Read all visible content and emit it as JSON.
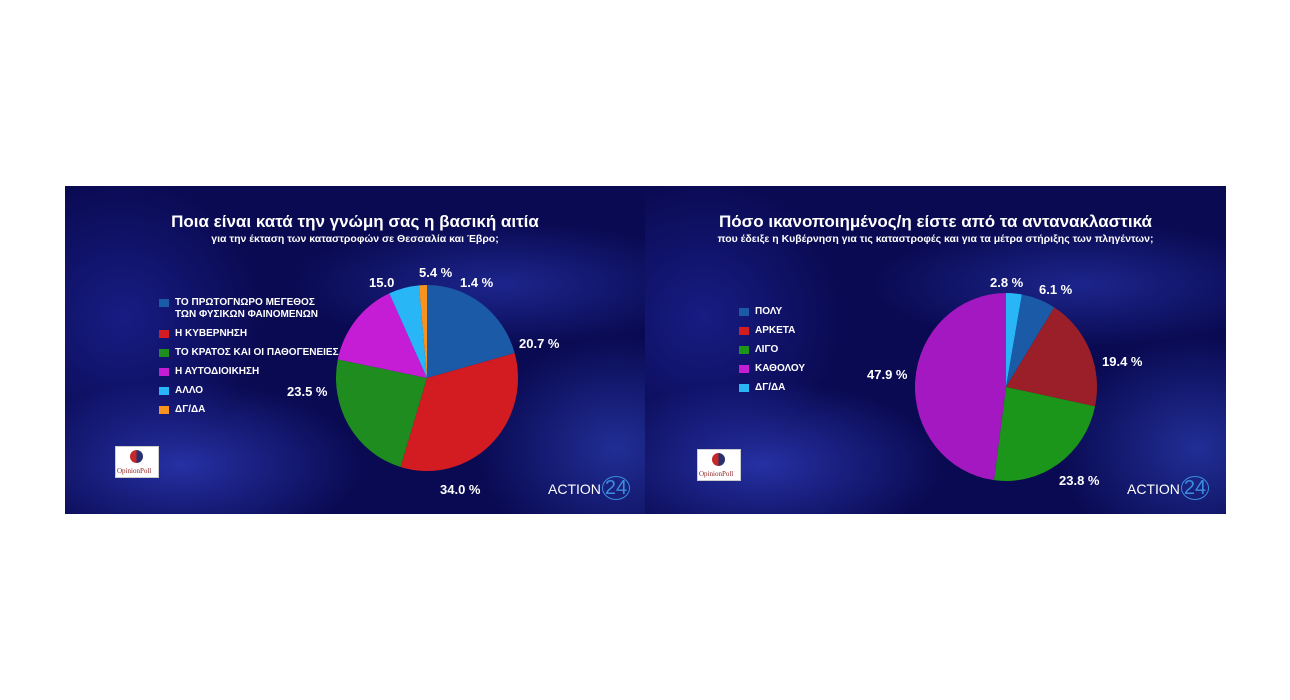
{
  "chart_data": [
    {
      "type": "pie",
      "title": "Ποια είναι κατά την γνώμη σας η βασική αιτία",
      "subtitle": "για την έκταση των καταστροφών σε Θεσσαλία και Έβρο;",
      "legend_position": "left",
      "categories": [
        "ΤΟ ΠΡΩΤΟΓΝΩΡΟ ΜΕΓΕΘΟΣ\nΤΩΝ ΦΥΣΙΚΩΝ ΦΑΙΝΟΜΕΝΩΝ",
        "Η ΚΥΒΕΡΝΗΣΗ",
        "ΤΟ ΚΡΑΤΟΣ ΚΑΙ ΟΙ ΠΑΘΟΓΕΝΕΙΕΣ ΤΟΥ",
        "Η ΑΥΤΟΔΙΟΙΚΗΣΗ",
        "ΑΛΛΟ",
        "ΔΓ/ΔΑ"
      ],
      "values": [
        20.7,
        34.0,
        23.5,
        15.0,
        5.4,
        1.4
      ],
      "data_labels": [
        "20.7 %",
        "34.0 %",
        "23.5 %",
        "15.0",
        "5.4 %",
        "1.4 %"
      ],
      "colors": [
        "#1a5aa6",
        "#d21c22",
        "#1f8c1f",
        "#c51dd6",
        "#29b6f6",
        "#f7931e"
      ]
    },
    {
      "type": "pie",
      "title": "Πόσο ικανοποιημένος/η είστε από τα αντανακλαστικά",
      "subtitle": "που έδειξε η Κυβέρνηση για τις καταστροφές και για τα μέτρα στήριξης των πληγέντων;",
      "legend_position": "left",
      "categories": [
        "ΠΟΛΥ",
        "ΑΡΚΕΤΑ",
        "ΛΙΓΟ",
        "ΚΑΘΟΛΟΥ",
        "ΔΓ/ΔΑ"
      ],
      "values": [
        6.1,
        19.4,
        23.8,
        47.9,
        2.8
      ],
      "data_labels": [
        "6.1 %",
        "19.4 %",
        "23.8 %",
        "47.9 %",
        "2.8 %"
      ],
      "colors": [
        "#1a5aa6",
        "#9a1f28",
        "#1b961b",
        "#a318c0",
        "#29b6f6"
      ],
      "legend_colors": [
        "#1a5aa6",
        "#d21c22",
        "#1b961b",
        "#c51dd6",
        "#29b6f6"
      ],
      "slice_order": [
        4,
        0,
        1,
        2,
        3
      ]
    }
  ],
  "logos": {
    "pollster": "OpinionPoll",
    "channel": "ACTION",
    "channel_num": "24"
  }
}
